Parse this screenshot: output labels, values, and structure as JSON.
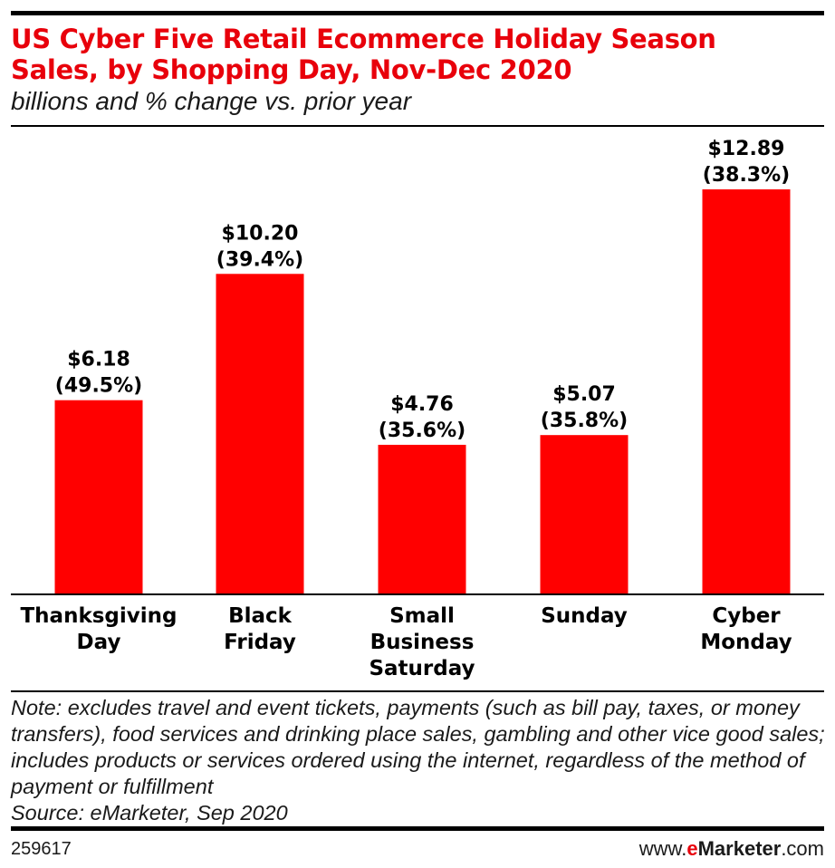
{
  "title": "US Cyber Five Retail Ecommerce Holiday Season Sales, by Shopping Day, Nov-Dec 2020",
  "subtitle": "billions and % change vs. prior year",
  "chart_data": {
    "type": "bar",
    "categories": [
      [
        "Thanksgiving",
        "Day"
      ],
      [
        "Black",
        "Friday"
      ],
      [
        "Small",
        "Business",
        "Saturday"
      ],
      [
        "Sunday"
      ],
      [
        "Cyber",
        "Monday"
      ]
    ],
    "values": [
      6.18,
      10.2,
      4.76,
      5.07,
      12.89
    ],
    "value_labels": [
      "$6.18",
      "$10.20",
      "$4.76",
      "$5.07",
      "$12.89"
    ],
    "change_labels": [
      "(49.5%)",
      "(39.4%)",
      "(35.6%)",
      "(35.8%)",
      "(38.3%)"
    ],
    "ylim": [
      0,
      14
    ],
    "bar_color": "#ff0000",
    "grid": false,
    "legend": "none"
  },
  "note": "Note: excludes travel and event tickets, payments (such as bill pay, taxes, or money transfers), food services and drinking place sales, gambling and other vice good sales; includes products or services ordered using the internet, regardless of the method of payment or fulfillment",
  "source": "Source: eMarketer, Sep 2020",
  "footer": {
    "chart_id": "259617",
    "brand_prefix": "www.",
    "brand_e": "e",
    "brand_name": "Marketer",
    "brand_suffix": ".com"
  },
  "colors": {
    "title": "#e8000b",
    "bar": "#ff0000",
    "text": "#000000"
  }
}
